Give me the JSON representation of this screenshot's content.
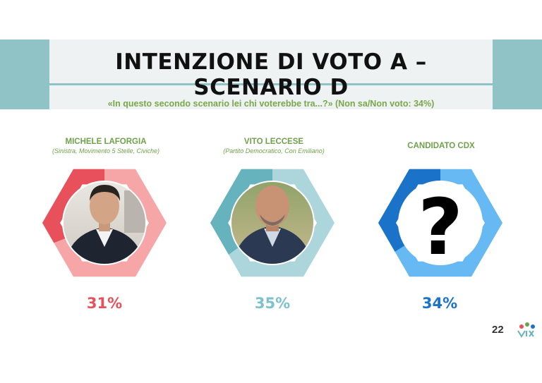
{
  "slide": {
    "title": "INTENZIONE DI VOTO A – SCENARIO D",
    "subtitle": "«In questo secondo scenario lei chi voterebbe tra...?» (Non sa/Non voto: 34%)",
    "page_number": "22"
  },
  "chart_data": {
    "type": "pie",
    "title": "INTENZIONE DI VOTO A – SCENARIO D",
    "categories": [
      "MICHELE LAFORGIA",
      "VITO LECCESE",
      "CANDIDATO CDX"
    ],
    "values": [
      31,
      35,
      34
    ],
    "unit": "%",
    "candidates": [
      {
        "name": "MICHELE LAFORGIA",
        "affiliation": "(Sinistra, Movimento 5 Stelle, Civiche)",
        "value": 31,
        "label": "31%",
        "color": "#e8505b",
        "light": "#f7a6a8"
      },
      {
        "name": "VITO LECCESE",
        "affiliation": "(Partito Democratico, Con Emiliano)",
        "value": 35,
        "label": "35%",
        "color": "#66b2bd",
        "light": "#acd6dc"
      },
      {
        "name": "CANDIDATO CDX",
        "affiliation": "",
        "value": 34,
        "label": "34%",
        "color": "#1a73c8",
        "light": "#66b9f2"
      }
    ]
  }
}
